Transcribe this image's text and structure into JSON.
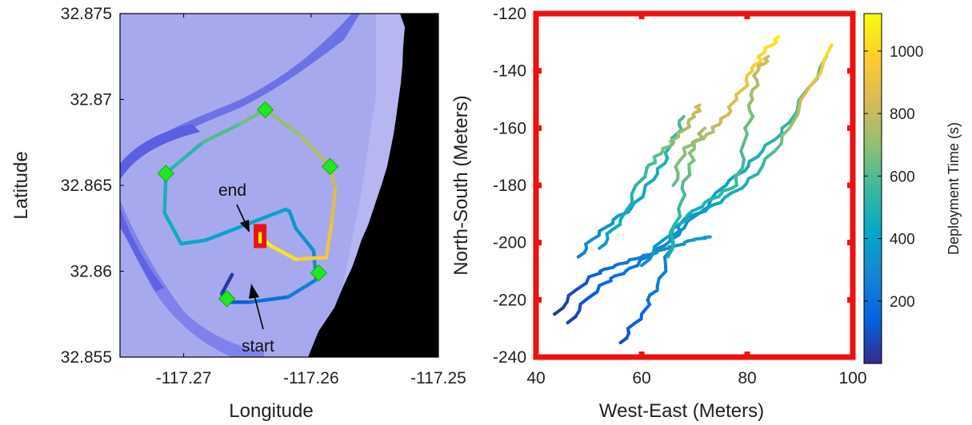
{
  "chart_data": [
    {
      "type": "map-trajectory",
      "xlabel": "Longitude",
      "ylabel": "Latitude",
      "xlim": [
        -117.275,
        -117.25
      ],
      "ylim": [
        32.855,
        32.875
      ],
      "xticks": [
        -117.27,
        -117.26,
        -117.25
      ],
      "xtick_labels": [
        "-117.27",
        "-117.26",
        "-117.25"
      ],
      "yticks": [
        32.855,
        32.86,
        32.865,
        32.87,
        32.875
      ],
      "ytick_labels": [
        "32.855",
        "32.86",
        "32.865",
        "32.87",
        "32.875"
      ],
      "annotations": [
        {
          "text": "end",
          "target": [
            -117.264,
            32.862
          ]
        },
        {
          "text": "start",
          "target": [
            -117.2645,
            32.8595
          ]
        }
      ],
      "waypoints": [
        {
          "lon": -117.2636,
          "lat": 32.8694
        },
        {
          "lon": -117.2585,
          "lat": 32.8661
        },
        {
          "lon": -117.2714,
          "lat": 32.8657
        },
        {
          "lon": -117.2594,
          "lat": 32.8599
        },
        {
          "lon": -117.2666,
          "lat": 32.8584
        }
      ],
      "end_marker": {
        "lon": -117.264,
        "lat": 32.862
      },
      "trajectory": [
        {
          "lon": -117.2662,
          "lat": 32.8598,
          "t": 0
        },
        {
          "lon": -117.267,
          "lat": 32.8587,
          "t": 40
        },
        {
          "lon": -117.2668,
          "lat": 32.8582,
          "t": 80
        },
        {
          "lon": -117.2648,
          "lat": 32.8582,
          "t": 130
        },
        {
          "lon": -117.2618,
          "lat": 32.8585,
          "t": 190
        },
        {
          "lon": -117.2596,
          "lat": 32.8595,
          "t": 250
        },
        {
          "lon": -117.2598,
          "lat": 32.8612,
          "t": 300
        },
        {
          "lon": -117.2612,
          "lat": 32.8625,
          "t": 330
        },
        {
          "lon": -117.2617,
          "lat": 32.8635,
          "t": 350
        },
        {
          "lon": -117.262,
          "lat": 32.8636,
          "t": 360
        },
        {
          "lon": -117.2683,
          "lat": 32.8618,
          "t": 400
        },
        {
          "lon": -117.2702,
          "lat": 32.8616,
          "t": 420
        },
        {
          "lon": -117.2715,
          "lat": 32.8634,
          "t": 450
        },
        {
          "lon": -117.2714,
          "lat": 32.8657,
          "t": 480
        },
        {
          "lon": -117.2685,
          "lat": 32.8675,
          "t": 540
        },
        {
          "lon": -117.2655,
          "lat": 32.8686,
          "t": 600
        },
        {
          "lon": -117.2636,
          "lat": 32.8694,
          "t": 650
        },
        {
          "lon": -117.2608,
          "lat": 32.8679,
          "t": 700
        },
        {
          "lon": -117.2585,
          "lat": 32.8661,
          "t": 760
        },
        {
          "lon": -117.2581,
          "lat": 32.8648,
          "t": 800
        },
        {
          "lon": -117.2584,
          "lat": 32.8627,
          "t": 860
        },
        {
          "lon": -117.2588,
          "lat": 32.8608,
          "t": 920
        },
        {
          "lon": -117.2612,
          "lat": 32.8607,
          "t": 980
        },
        {
          "lon": -117.2632,
          "lat": 32.8615,
          "t": 1040
        },
        {
          "lon": -117.264,
          "lat": 32.862,
          "t": 1100
        }
      ]
    },
    {
      "type": "line",
      "xlabel": "West-East (Meters)",
      "ylabel": "North-South (Meters)",
      "xlim": [
        40,
        100
      ],
      "ylim": [
        -240,
        -120
      ],
      "xticks": [
        40,
        60,
        80,
        100
      ],
      "xtick_labels": [
        "40",
        "60",
        "80",
        "100"
      ],
      "yticks": [
        -240,
        -220,
        -200,
        -180,
        -160,
        -140,
        -120
      ],
      "ytick_labels": [
        "-240",
        "-220",
        "-200",
        "-180",
        "-160",
        "-140",
        "-120"
      ],
      "colorbar": {
        "label": "Deployment Time (s)",
        "range": [
          0,
          1120
        ],
        "ticks": [
          200,
          400,
          600,
          800,
          1000
        ],
        "tick_labels": [
          "200",
          "400",
          "600",
          "800",
          "1000"
        ],
        "colormap": "parula"
      },
      "series": [
        {
          "points": [
            [
              43.5,
              -225,
              20
            ],
            [
              50,
              -212,
              120
            ],
            [
              55,
              -208,
              200
            ],
            [
              60,
              -205,
              270
            ],
            [
              65,
              -202,
              320
            ],
            [
              70,
              -199,
              360
            ],
            [
              73,
              -198,
              390
            ]
          ]
        },
        {
          "points": [
            [
              46,
              -228,
              40
            ],
            [
              52,
              -215,
              150
            ],
            [
              57,
              -210,
              210
            ],
            [
              62,
              -204,
              260
            ],
            [
              68,
              -195,
              330
            ],
            [
              76,
              -180,
              410
            ],
            [
              82,
              -170,
              480
            ],
            [
              88,
              -158,
              550
            ],
            [
              95,
              -135,
              620
            ]
          ]
        },
        {
          "points": [
            [
              56,
              -235,
              80
            ],
            [
              60,
              -225,
              160
            ],
            [
              63,
              -215,
              230
            ],
            [
              66,
              -200,
              300
            ],
            [
              68,
              -192,
              350
            ],
            [
              75,
              -186,
              430
            ],
            [
              82,
              -176,
              520
            ],
            [
              88,
              -160,
              700
            ],
            [
              96,
              -131,
              1050
            ]
          ]
        },
        {
          "points": [
            [
              48,
              -205,
              260
            ],
            [
              52,
              -196,
              320
            ],
            [
              58,
              -188,
              400
            ],
            [
              63,
              -176,
              470
            ],
            [
              66,
              -165,
              540
            ],
            [
              68,
              -156,
              600
            ]
          ]
        },
        {
          "points": [
            [
              52,
              -202,
              380
            ],
            [
              56,
              -192,
              450
            ],
            [
              61,
              -174,
              560
            ],
            [
              64,
              -168,
              640
            ],
            [
              67,
              -163,
              720
            ],
            [
              70,
              -156,
              780
            ],
            [
              71,
              -152,
              830
            ]
          ]
        },
        {
          "points": [
            [
              66,
              -180,
              620
            ],
            [
              68,
              -167,
              700
            ],
            [
              72,
              -163,
              760
            ],
            [
              75,
              -158,
              800
            ],
            [
              78,
              -150,
              860
            ],
            [
              81,
              -140,
              940
            ],
            [
              83,
              -134,
              1000
            ],
            [
              86,
              -128,
              1080
            ]
          ]
        },
        {
          "points": [
            [
              60,
              -208,
              300
            ],
            [
              66,
              -195,
              420
            ],
            [
              72,
              -186,
              500
            ],
            [
              78,
              -180,
              560
            ],
            [
              80,
              -162,
              620
            ],
            [
              81,
              -150,
              700
            ],
            [
              82,
              -140,
              780
            ],
            [
              84,
              -135,
              850
            ]
          ]
        },
        {
          "points": [
            [
              65,
              -205,
              480
            ],
            [
              67,
              -188,
              560
            ],
            [
              69,
              -174,
              640
            ],
            [
              70,
              -166,
              700
            ],
            [
              72,
              -160,
              760
            ]
          ]
        }
      ]
    }
  ]
}
